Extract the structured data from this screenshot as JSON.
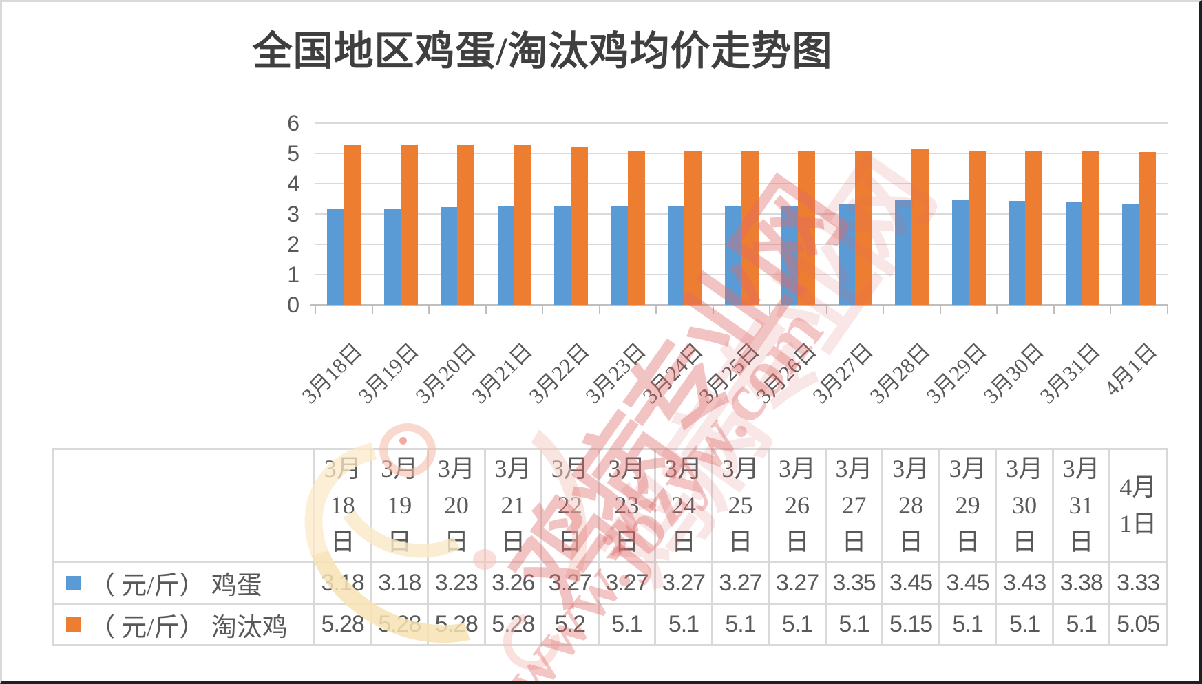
{
  "title": "全国地区鸡蛋/淘汰鸡均价走势图",
  "watermark": {
    "brand": "鸡病专业网",
    "site": "www.jbzyw.com",
    "color": "#e06a6a"
  },
  "chart_data": {
    "type": "bar",
    "title": "全国地区鸡蛋/淘汰鸡均价走势图",
    "categories": [
      "3月18日",
      "3月19日",
      "3月20日",
      "3月21日",
      "3月22日",
      "3月23日",
      "3月24日",
      "3月25日",
      "3月26日",
      "3月27日",
      "3月28日",
      "3月29日",
      "3月30日",
      "3月31日",
      "4月1日"
    ],
    "series": [
      {
        "name": "（ 元/斤） 鸡蛋",
        "color": "#5B9BD5",
        "values": [
          3.18,
          3.18,
          3.23,
          3.26,
          3.27,
          3.27,
          3.27,
          3.27,
          3.27,
          3.35,
          3.45,
          3.45,
          3.43,
          3.38,
          3.33
        ]
      },
      {
        "name": "（ 元/斤） 淘汰鸡",
        "color": "#ED7D31",
        "values": [
          5.28,
          5.28,
          5.28,
          5.28,
          5.2,
          5.1,
          5.1,
          5.1,
          5.1,
          5.1,
          5.15,
          5.1,
          5.1,
          5.1,
          5.05
        ]
      }
    ],
    "ylim": [
      0,
      6
    ],
    "yticks": [
      0,
      1,
      2,
      3,
      4,
      5,
      6
    ],
    "grid": true,
    "legend_position": "table rows below chart",
    "xlabel": "",
    "ylabel": ""
  },
  "table": {
    "col_headers": [
      "3月\n18\n日",
      "3月\n19\n日",
      "3月\n20\n日",
      "3月\n21\n日",
      "3月\n22\n日",
      "3月\n23\n日",
      "3月\n24\n日",
      "3月\n25\n日",
      "3月\n26\n日",
      "3月\n27\n日",
      "3月\n28\n日",
      "3月\n29\n日",
      "3月\n30\n日",
      "3月\n31\n日",
      "4月\n1日"
    ],
    "rows": [
      {
        "label": "（ 元/斤） 鸡蛋",
        "swatch_color": "#5B9BD5",
        "values": [
          "3.18",
          "3.18",
          "3.23",
          "3.26",
          "3.27",
          "3.27",
          "3.27",
          "3.27",
          "3.27",
          "3.35",
          "3.45",
          "3.45",
          "3.43",
          "3.38",
          "3.33"
        ]
      },
      {
        "label": "（ 元/斤） 淘汰鸡",
        "swatch_color": "#ED7D31",
        "values": [
          "5.28",
          "5.28",
          "5.28",
          "5.28",
          "5.2",
          "5.1",
          "5.1",
          "5.1",
          "5.1",
          "5.1",
          "5.15",
          "5.1",
          "5.1",
          "5.1",
          "5.05"
        ]
      }
    ]
  },
  "axis": {
    "y_labels": [
      "0",
      "1",
      "2",
      "3",
      "4",
      "5",
      "6"
    ]
  },
  "colors": {
    "eggs": "#5B9BD5",
    "culled_chicken": "#ED7D31",
    "text": "#595959",
    "gridline": "#D9D9D9",
    "axis": "#BFBFBF"
  }
}
